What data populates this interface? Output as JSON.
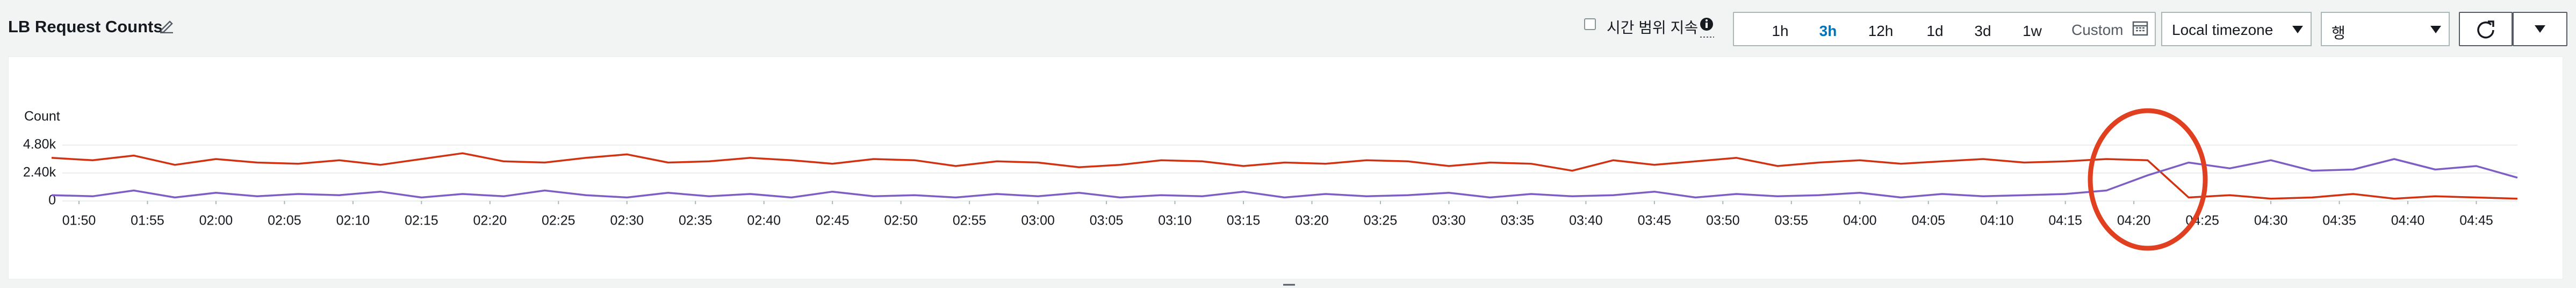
{
  "header": {
    "title": "LB Request Counts"
  },
  "controls": {
    "persist_label": "시간 범위 지속",
    "time_buttons": [
      "1h",
      "3h",
      "12h",
      "1d",
      "3d",
      "1w"
    ],
    "selected_index": 1,
    "custom": "Custom",
    "timezone": "Local timezone",
    "row_select": "행"
  },
  "chart_data": {
    "type": "line",
    "ylabel": "Count",
    "x": [
      "01:48",
      "01:51",
      "01:54",
      "01:57",
      "02:00",
      "02:03",
      "02:06",
      "02:09",
      "02:12",
      "02:15",
      "02:18",
      "02:21",
      "02:24",
      "02:27",
      "02:30",
      "02:33",
      "02:36",
      "02:39",
      "02:42",
      "02:45",
      "02:48",
      "02:51",
      "02:54",
      "02:57",
      "03:00",
      "03:03",
      "03:06",
      "03:09",
      "03:12",
      "03:15",
      "03:18",
      "03:21",
      "03:24",
      "03:27",
      "03:30",
      "03:33",
      "03:36",
      "03:39",
      "03:42",
      "03:45",
      "03:48",
      "03:51",
      "03:54",
      "03:57",
      "04:00",
      "04:03",
      "04:06",
      "04:09",
      "04:12",
      "04:15",
      "04:18",
      "04:21",
      "04:24",
      "04:27",
      "04:30",
      "04:33",
      "04:36",
      "04:39",
      "04:42",
      "04:45",
      "04:48"
    ],
    "series": [
      {
        "color": "#d13212",
        "values": [
          3700,
          3500,
          3900,
          3100,
          3600,
          3300,
          3200,
          3500,
          3100,
          3600,
          4100,
          3400,
          3300,
          3700,
          4000,
          3300,
          3400,
          3700,
          3500,
          3200,
          3600,
          3500,
          3000,
          3400,
          3300,
          2900,
          3100,
          3500,
          3400,
          3000,
          3300,
          3200,
          3500,
          3400,
          3000,
          3300,
          3200,
          2600,
          3500,
          3100,
          3400,
          3700,
          3000,
          3300,
          3500,
          3200,
          3400,
          3600,
          3300,
          3400,
          3600,
          3500,
          300,
          500,
          200,
          300,
          600,
          200,
          400,
          300,
          200
        ]
      },
      {
        "color": "#7d5ec4",
        "values": [
          500,
          400,
          900,
          300,
          700,
          400,
          600,
          500,
          800,
          300,
          600,
          400,
          900,
          500,
          300,
          700,
          400,
          600,
          300,
          800,
          400,
          500,
          300,
          600,
          400,
          700,
          300,
          500,
          400,
          800,
          300,
          600,
          400,
          500,
          700,
          300,
          600,
          400,
          500,
          800,
          300,
          600,
          400,
          500,
          700,
          300,
          600,
          400,
          500,
          600,
          900,
          2200,
          3300,
          2800,
          3500,
          2600,
          2700,
          3600,
          2700,
          3000,
          2000
        ]
      }
    ],
    "xlim": [
      "01:48",
      "04:48"
    ],
    "xticks": [
      "01:50",
      "01:55",
      "02:00",
      "02:05",
      "02:10",
      "02:15",
      "02:20",
      "02:25",
      "02:30",
      "02:35",
      "02:40",
      "02:45",
      "02:50",
      "02:55",
      "03:00",
      "03:05",
      "03:10",
      "03:15",
      "03:20",
      "03:25",
      "03:30",
      "03:35",
      "03:40",
      "03:45",
      "03:50",
      "03:55",
      "04:00",
      "04:05",
      "04:10",
      "04:15",
      "04:20",
      "04:25",
      "04:30",
      "04:35",
      "04:40",
      "04:45"
    ],
    "ylim": [
      0,
      4800
    ],
    "yticks": [
      0,
      {
        "value": 2400,
        "label": "2.40k"
      },
      {
        "value": 4800,
        "label": "4.80k"
      }
    ],
    "grid": true
  }
}
